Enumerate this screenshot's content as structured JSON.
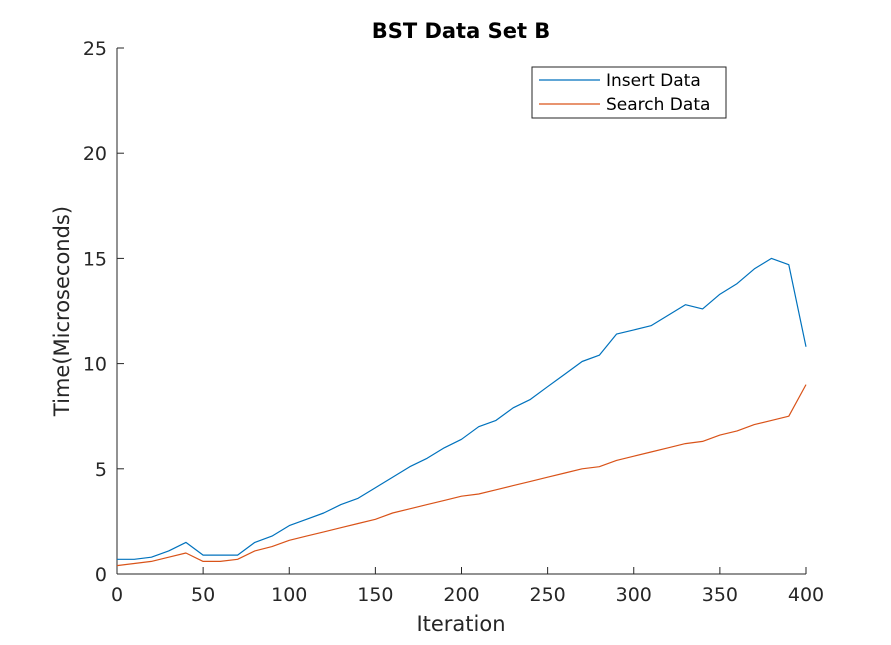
{
  "chart_data": {
    "type": "line",
    "title": "BST Data Set B",
    "xlabel": "Iteration",
    "ylabel": "Time(Microseconds)",
    "xlim": [
      0,
      400
    ],
    "ylim": [
      0,
      25
    ],
    "x_ticks": [
      0,
      50,
      100,
      150,
      200,
      250,
      300,
      350,
      400
    ],
    "y_ticks": [
      0,
      5,
      10,
      15,
      20,
      25
    ],
    "grid": false,
    "legend_position": "top-right",
    "x": [
      0,
      10,
      20,
      30,
      40,
      50,
      60,
      70,
      80,
      90,
      100,
      110,
      120,
      130,
      140,
      150,
      160,
      170,
      180,
      190,
      200,
      210,
      220,
      230,
      240,
      250,
      260,
      270,
      280,
      290,
      300,
      310,
      320,
      330,
      340,
      350,
      360,
      370,
      380,
      390,
      400
    ],
    "series": [
      {
        "name": "Insert Data",
        "color": "#0072BD",
        "values": [
          0.7,
          0.7,
          0.8,
          1.1,
          1.5,
          0.9,
          0.9,
          0.9,
          1.5,
          1.8,
          2.3,
          2.6,
          2.9,
          3.3,
          3.6,
          4.1,
          4.6,
          5.1,
          5.5,
          6.0,
          6.4,
          7.0,
          7.3,
          7.9,
          8.3,
          8.9,
          9.5,
          10.1,
          10.4,
          11.4,
          11.6,
          11.8,
          12.3,
          12.8,
          12.6,
          13.3,
          13.8,
          14.5,
          15.0,
          14.7,
          10.8
        ]
      },
      {
        "name": "Search Data",
        "color": "#D95319",
        "values": [
          0.4,
          0.5,
          0.6,
          0.8,
          1.0,
          0.6,
          0.6,
          0.7,
          1.1,
          1.3,
          1.6,
          1.8,
          2.0,
          2.2,
          2.4,
          2.6,
          2.9,
          3.1,
          3.3,
          3.5,
          3.7,
          3.8,
          4.0,
          4.2,
          4.4,
          4.6,
          4.8,
          5.0,
          5.1,
          5.4,
          5.6,
          5.8,
          6.0,
          6.2,
          6.3,
          6.6,
          6.8,
          7.1,
          7.3,
          7.5,
          9.0
        ]
      }
    ]
  }
}
